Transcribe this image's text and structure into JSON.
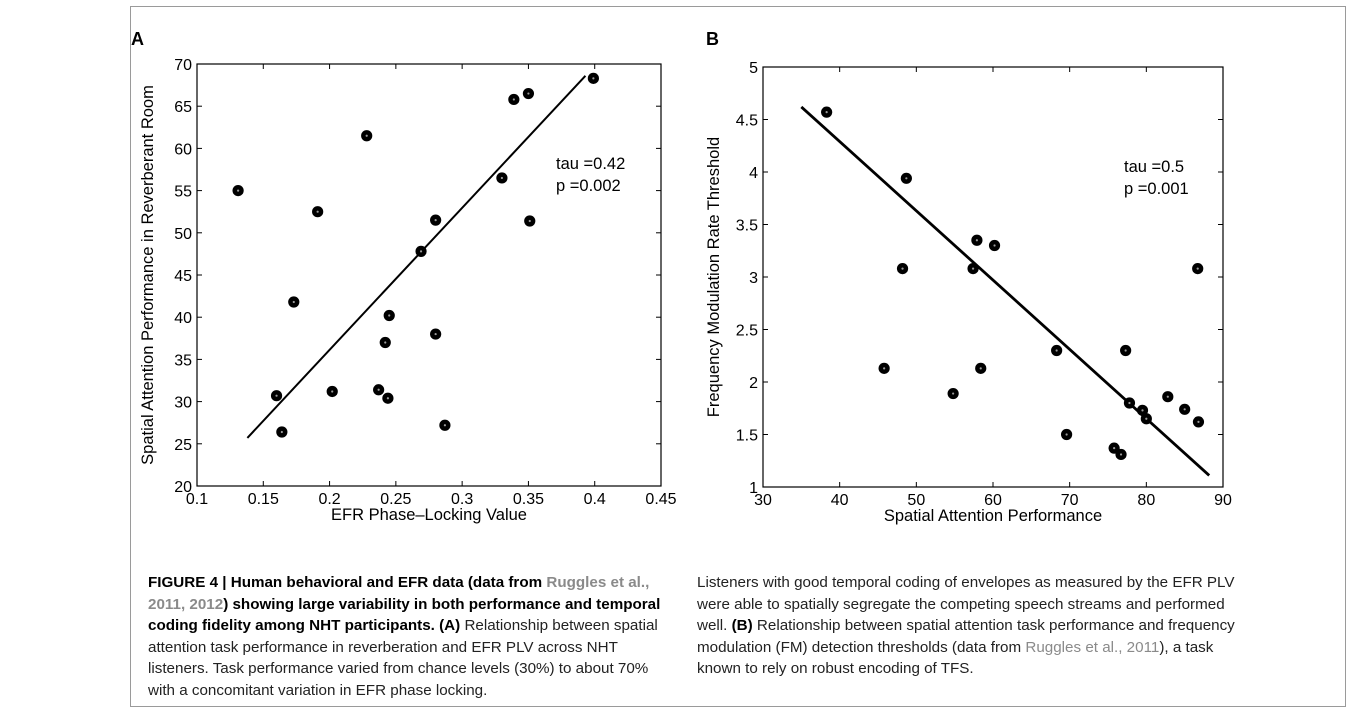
{
  "figure": {
    "panel_a_letter": "A",
    "panel_b_letter": "B"
  },
  "chart_data": [
    {
      "type": "scatter",
      "title": "",
      "xlabel": "EFR Phase–Locking Value",
      "ylabel": "Spatial Attention Performance in Reverberant Room",
      "xlim": [
        0.1,
        0.45
      ],
      "ylim": [
        20,
        70
      ],
      "xticks": [
        "0.1",
        "0.15",
        "0.2",
        "0.25",
        "0.3",
        "0.35",
        "0.4",
        "0.45"
      ],
      "yticks": [
        "20",
        "25",
        "30",
        "35",
        "40",
        "45",
        "50",
        "55",
        "60",
        "65",
        "70"
      ],
      "grid": false,
      "points": [
        [
          0.131,
          55.0
        ],
        [
          0.16,
          30.7
        ],
        [
          0.164,
          26.4
        ],
        [
          0.173,
          41.8
        ],
        [
          0.191,
          52.5
        ],
        [
          0.202,
          31.2
        ],
        [
          0.228,
          61.5
        ],
        [
          0.237,
          31.4
        ],
        [
          0.242,
          37.0
        ],
        [
          0.244,
          30.4
        ],
        [
          0.245,
          40.2
        ],
        [
          0.269,
          47.8
        ],
        [
          0.28,
          51.5
        ],
        [
          0.28,
          38.0
        ],
        [
          0.287,
          27.2
        ],
        [
          0.33,
          56.5
        ],
        [
          0.339,
          65.8
        ],
        [
          0.35,
          66.5
        ],
        [
          0.351,
          51.4
        ],
        [
          0.399,
          68.3
        ]
      ],
      "fit_line": [
        [
          0.138,
          25.7
        ],
        [
          0.393,
          68.6
        ]
      ],
      "annotations": [
        "tau =0.42",
        "p =0.002"
      ]
    },
    {
      "type": "scatter",
      "title": "",
      "xlabel": "Spatial Attention Performance",
      "ylabel": "Frequency Modulation Rate Threshold",
      "xlim": [
        30,
        90
      ],
      "ylim": [
        1,
        5
      ],
      "xticks": [
        "30",
        "40",
        "50",
        "60",
        "70",
        "80",
        "90"
      ],
      "yticks": [
        "1",
        "1.5",
        "2",
        "2.5",
        "3",
        "3.5",
        "4",
        "4.5",
        "5"
      ],
      "grid": false,
      "points": [
        [
          38.3,
          4.57
        ],
        [
          45.8,
          2.13
        ],
        [
          48.2,
          3.08
        ],
        [
          48.7,
          3.94
        ],
        [
          54.8,
          1.89
        ],
        [
          57.4,
          3.08
        ],
        [
          57.9,
          3.35
        ],
        [
          58.4,
          2.13
        ],
        [
          60.2,
          3.3
        ],
        [
          68.3,
          2.3
        ],
        [
          69.6,
          1.5
        ],
        [
          75.8,
          1.37
        ],
        [
          76.7,
          1.31
        ],
        [
          77.3,
          2.3
        ],
        [
          77.8,
          1.8
        ],
        [
          79.5,
          1.73
        ],
        [
          80.0,
          1.65
        ],
        [
          82.8,
          1.86
        ],
        [
          85.0,
          1.74
        ],
        [
          86.7,
          3.08
        ],
        [
          86.8,
          1.62
        ]
      ],
      "fit_line": [
        [
          35.0,
          4.62
        ],
        [
          88.2,
          1.11
        ]
      ],
      "annotations": [
        "tau =0.5",
        "p =0.001"
      ]
    }
  ],
  "caption_left": {
    "title": "FIGURE 4 | Human behavioral and EFR data (data from ",
    "cite1": "Ruggles et al., 2011, 2012",
    "title2": ") showing large variability in both performance and temporal coding fidelity among NHT participants. ",
    "label_a": "(A)",
    "body": " Relationship between spatial attention task performance in reverberation and EFR PLV across NHT listeners. Task performance varied from chance levels (30%) to about 70% with a concomitant variation in EFR phase locking."
  },
  "caption_right": {
    "body1": "Listeners with good temporal coding of envelopes as measured by the EFR PLV were able to spatially segregate the competing speech streams and performed well. ",
    "label_b": "(B)",
    "body2": " Relationship between spatial attention task performance and frequency modulation (FM) detection thresholds (data from ",
    "cite2": "Ruggles et al., 2011",
    "body3": "), a task known to rely on robust encoding of TFS."
  }
}
